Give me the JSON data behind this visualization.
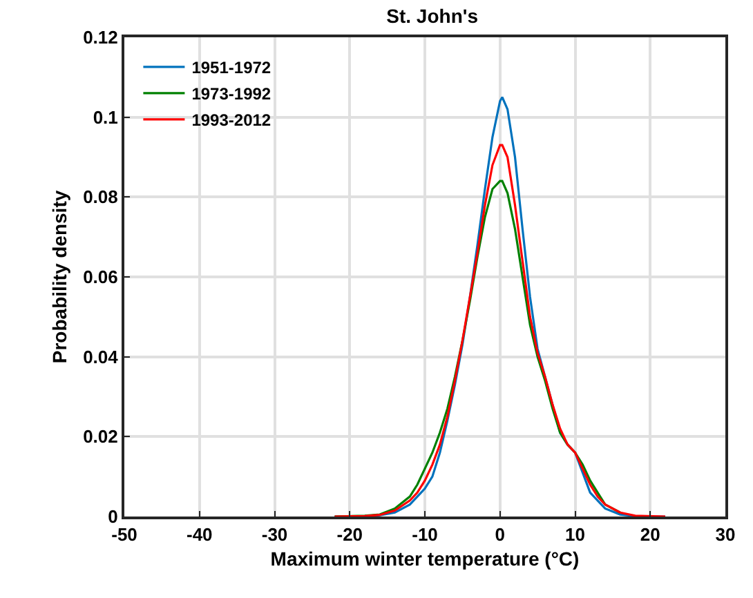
{
  "chart_data": {
    "type": "line",
    "title": "St. John's",
    "xlabel": "Maximum winter temperature (°C)",
    "ylabel": "Probability density",
    "xlim": [
      -50,
      30
    ],
    "xticks": [
      -50,
      -40,
      -30,
      -20,
      -10,
      0,
      10,
      20,
      30
    ],
    "ylim": [
      0,
      0.12
    ],
    "yticks": [
      0,
      0.02,
      0.04,
      0.06,
      0.08,
      0.1,
      0.12
    ],
    "grid": true,
    "legend": "top left",
    "line_style": "solid",
    "marker": "none",
    "x": [
      -22,
      -18,
      -16,
      -14,
      -12,
      -11,
      -10,
      -9,
      -8,
      -7,
      -6,
      -5,
      -4,
      -3,
      -2,
      -1,
      0,
      0.3,
      1,
      2,
      3,
      4,
      5,
      6,
      7,
      8,
      9,
      10,
      11,
      12,
      13,
      14,
      16,
      18,
      22
    ],
    "series": [
      {
        "name": "1951-1972",
        "color": "#0072bd",
        "values": [
          0,
          0.0001,
          0.0003,
          0.001,
          0.003,
          0.005,
          0.007,
          0.01,
          0.016,
          0.024,
          0.033,
          0.043,
          0.055,
          0.068,
          0.082,
          0.095,
          0.104,
          0.105,
          0.102,
          0.09,
          0.072,
          0.055,
          0.042,
          0.035,
          0.028,
          0.021,
          0.018,
          0.016,
          0.011,
          0.006,
          0.004,
          0.002,
          0.0005,
          0.0001,
          0
        ]
      },
      {
        "name": "1973-1992",
        "color": "#008000",
        "values": [
          0,
          0.0002,
          0.0005,
          0.002,
          0.005,
          0.008,
          0.012,
          0.016,
          0.021,
          0.027,
          0.035,
          0.044,
          0.054,
          0.065,
          0.075,
          0.082,
          0.084,
          0.084,
          0.081,
          0.072,
          0.06,
          0.048,
          0.04,
          0.034,
          0.027,
          0.021,
          0.018,
          0.016,
          0.013,
          0.009,
          0.006,
          0.003,
          0.001,
          null,
          null
        ]
      },
      {
        "name": "1993-2012",
        "color": "#ff0000",
        "values": [
          0,
          0.0001,
          0.0004,
          0.0015,
          0.004,
          0.006,
          0.009,
          0.013,
          0.018,
          0.025,
          0.034,
          0.044,
          0.055,
          0.066,
          0.078,
          0.088,
          0.093,
          0.093,
          0.09,
          0.078,
          0.064,
          0.05,
          0.041,
          0.035,
          0.028,
          0.022,
          0.018,
          0.016,
          0.012,
          0.008,
          0.005,
          0.003,
          0.001,
          0.0002,
          0
        ]
      }
    ]
  }
}
